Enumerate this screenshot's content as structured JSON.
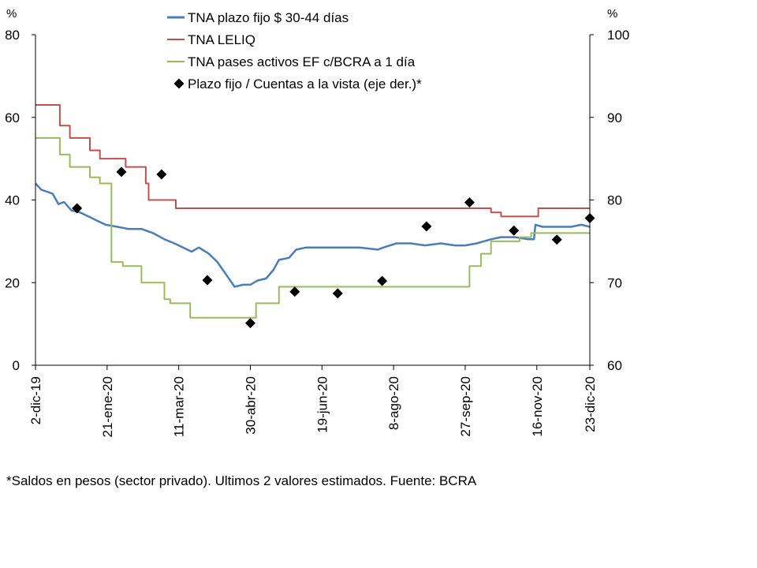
{
  "chart_data": {
    "type": "line",
    "title": "",
    "y_left_unit": "%",
    "y_right_unit": "%",
    "y_left_range": [
      0,
      80
    ],
    "y_right_range": [
      60,
      100
    ],
    "y_left_ticks": [
      "0",
      "20",
      "40",
      "60",
      "80"
    ],
    "y_right_ticks": [
      "60",
      "70",
      "80",
      "90",
      "100"
    ],
    "x_range": [
      "2019-12-02",
      "2020-12-23"
    ],
    "x_ticks": [
      {
        "date": "2019-12-02",
        "label": "2-dic-19"
      },
      {
        "date": "2020-01-21",
        "label": "21-ene-20"
      },
      {
        "date": "2020-03-11",
        "label": "11-mar-20"
      },
      {
        "date": "2020-04-30",
        "label": "30-abr-20"
      },
      {
        "date": "2020-06-19",
        "label": "19-jun-20"
      },
      {
        "date": "2020-08-08",
        "label": "8-ago-20"
      },
      {
        "date": "2020-09-27",
        "label": "27-sep-20"
      },
      {
        "date": "2020-11-16",
        "label": "16-nov-20"
      },
      {
        "date": "2020-12-23",
        "label": "23-dic-20"
      }
    ],
    "legend_position": "top",
    "grid": false,
    "series": [
      {
        "name": "TNA plazo fijo $ 30-44 días",
        "axis": "left",
        "color": "#4a7ebb",
        "style": "line",
        "points": [
          [
            "2019-12-02",
            44.0
          ],
          [
            "2019-12-06",
            42.5
          ],
          [
            "2019-12-10",
            42.0
          ],
          [
            "2019-12-14",
            41.5
          ],
          [
            "2019-12-18",
            39.0
          ],
          [
            "2019-12-22",
            39.5
          ],
          [
            "2019-12-27",
            37.5
          ],
          [
            "2020-01-02",
            37.0
          ],
          [
            "2020-01-08",
            36.0
          ],
          [
            "2020-01-14",
            35.0
          ],
          [
            "2020-01-20",
            34.0
          ],
          [
            "2020-01-28",
            33.5
          ],
          [
            "2020-02-05",
            33.0
          ],
          [
            "2020-02-14",
            33.0
          ],
          [
            "2020-02-22",
            32.0
          ],
          [
            "2020-03-01",
            30.5
          ],
          [
            "2020-03-08",
            29.5
          ],
          [
            "2020-03-14",
            28.5
          ],
          [
            "2020-03-20",
            27.5
          ],
          [
            "2020-03-25",
            28.5
          ],
          [
            "2020-04-01",
            27.0
          ],
          [
            "2020-04-07",
            25.0
          ],
          [
            "2020-04-13",
            22.0
          ],
          [
            "2020-04-19",
            19.0
          ],
          [
            "2020-04-25",
            19.5
          ],
          [
            "2020-04-30",
            19.5
          ],
          [
            "2020-05-05",
            20.5
          ],
          [
            "2020-05-11",
            21.0
          ],
          [
            "2020-05-16",
            23.0
          ],
          [
            "2020-05-20",
            25.5
          ],
          [
            "2020-05-27",
            26.0
          ],
          [
            "2020-06-01",
            28.0
          ],
          [
            "2020-06-08",
            28.5
          ],
          [
            "2020-06-19",
            28.5
          ],
          [
            "2020-07-01",
            28.5
          ],
          [
            "2020-07-15",
            28.5
          ],
          [
            "2020-07-28",
            28.0
          ],
          [
            "2020-08-01",
            28.5
          ],
          [
            "2020-08-10",
            29.5
          ],
          [
            "2020-08-20",
            29.5
          ],
          [
            "2020-08-30",
            29.0
          ],
          [
            "2020-09-10",
            29.5
          ],
          [
            "2020-09-20",
            29.0
          ],
          [
            "2020-09-27",
            29.0
          ],
          [
            "2020-10-05",
            29.5
          ],
          [
            "2020-10-15",
            30.5
          ],
          [
            "2020-10-22",
            31.0
          ],
          [
            "2020-11-01",
            31.0
          ],
          [
            "2020-11-10",
            30.5
          ],
          [
            "2020-11-14",
            30.5
          ],
          [
            "2020-11-15",
            34.0
          ],
          [
            "2020-11-20",
            33.5
          ],
          [
            "2020-11-30",
            33.5
          ],
          [
            "2020-12-10",
            33.5
          ],
          [
            "2020-12-17",
            34.0
          ],
          [
            "2020-12-23",
            33.5
          ]
        ]
      },
      {
        "name": "TNA LELIQ",
        "axis": "left",
        "color": "#c0504d",
        "style": "step",
        "points": [
          [
            "2019-12-02",
            63.0
          ],
          [
            "2019-12-19",
            58.0
          ],
          [
            "2019-12-26",
            55.0
          ],
          [
            "2020-01-09",
            52.0
          ],
          [
            "2020-01-16",
            50.0
          ],
          [
            "2020-02-03",
            48.0
          ],
          [
            "2020-02-17",
            44.0
          ],
          [
            "2020-02-19",
            40.0
          ],
          [
            "2020-03-09",
            38.0
          ],
          [
            "2020-10-15",
            37.0
          ],
          [
            "2020-10-22",
            36.0
          ],
          [
            "2020-11-17",
            38.0
          ],
          [
            "2020-12-23",
            38.0
          ]
        ]
      },
      {
        "name": "TNA pases activos EF c/BCRA a 1 día",
        "axis": "left",
        "color": "#9bbb59",
        "style": "step",
        "points": [
          [
            "2019-12-02",
            55.0
          ],
          [
            "2019-12-19",
            51.0
          ],
          [
            "2019-12-26",
            48.0
          ],
          [
            "2020-01-09",
            45.5
          ],
          [
            "2020-01-16",
            44.0
          ],
          [
            "2020-01-24",
            25.0
          ],
          [
            "2020-02-01",
            24.0
          ],
          [
            "2020-02-14",
            20.0
          ],
          [
            "2020-03-01",
            16.0
          ],
          [
            "2020-03-05",
            15.0
          ],
          [
            "2020-03-19",
            11.5
          ],
          [
            "2020-05-04",
            15.0
          ],
          [
            "2020-05-20",
            19.0
          ],
          [
            "2020-09-30",
            24.0
          ],
          [
            "2020-10-08",
            27.0
          ],
          [
            "2020-10-15",
            30.0
          ],
          [
            "2020-11-04",
            31.0
          ],
          [
            "2020-11-12",
            32.0
          ],
          [
            "2020-12-23",
            32.0
          ]
        ]
      },
      {
        "name": "Plazo fijo / Cuentas a la vista (eje der.)*",
        "axis": "right",
        "color": "#000000",
        "style": "markers",
        "points": [
          [
            "2019-12-31",
            79.0
          ],
          [
            "2020-01-31",
            83.4
          ],
          [
            "2020-02-28",
            83.1
          ],
          [
            "2020-03-31",
            70.3
          ],
          [
            "2020-04-30",
            65.1
          ],
          [
            "2020-05-31",
            68.9
          ],
          [
            "2020-06-30",
            68.7
          ],
          [
            "2020-07-31",
            70.2
          ],
          [
            "2020-08-31",
            76.8
          ],
          [
            "2020-09-30",
            79.7
          ],
          [
            "2020-10-31",
            76.3
          ],
          [
            "2020-11-30",
            75.2
          ],
          [
            "2020-12-23",
            77.8
          ]
        ]
      }
    ]
  },
  "footnote": "*Saldos en pesos (sector privado). Ultimos 2 valores estimados. Fuente: BCRA"
}
